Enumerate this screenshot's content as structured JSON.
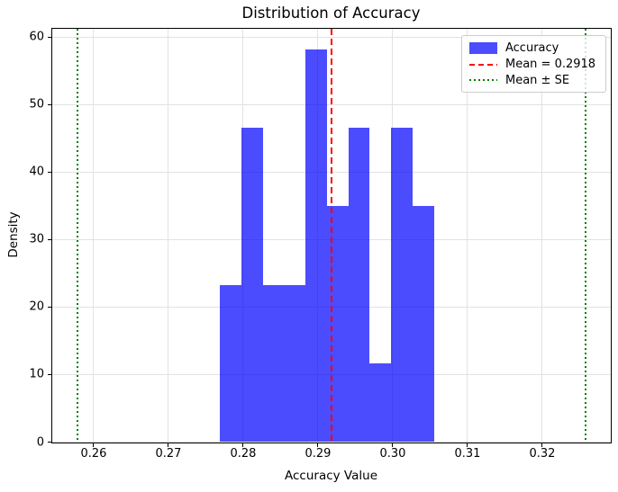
{
  "figure": {
    "title": "Distribution of Accuracy",
    "xlabel": "Accuracy Value",
    "ylabel": "Density"
  },
  "legend": {
    "position": "upper right",
    "items": [
      {
        "label": "Accuracy",
        "type": "patch",
        "color": "rgba(0,0,255,0.7)"
      },
      {
        "label": "Mean = 0.2918",
        "type": "dashed",
        "color": "#ff0000"
      },
      {
        "label": "Mean ± SE",
        "type": "dotted",
        "color": "#008000"
      }
    ]
  },
  "chart_data": {
    "type": "bar",
    "subtype": "histogram",
    "title": "Distribution of Accuracy",
    "xlabel": "Accuracy Value",
    "ylabel": "Density",
    "xlim": [
      0.2544,
      0.3291
    ],
    "ylim": [
      0,
      61.3
    ],
    "x_ticks": [
      0.26,
      0.27,
      0.28,
      0.29,
      0.3,
      0.31,
      0.32
    ],
    "x_tick_labels": [
      "0.26",
      "0.27",
      "0.28",
      "0.29",
      "0.30",
      "0.31",
      "0.32"
    ],
    "y_ticks": [
      0,
      10,
      20,
      30,
      40,
      50,
      60
    ],
    "y_tick_labels": [
      "0",
      "10",
      "20",
      "30",
      "40",
      "50",
      "60"
    ],
    "grid": true,
    "legend_position": "upper right",
    "series": [
      {
        "name": "Accuracy",
        "kind": "histogram",
        "bin_start": 0.2769,
        "bin_width": 0.00286,
        "bin_edges": [
          0.2769,
          0.27976,
          0.28262,
          0.28548,
          0.28834,
          0.2912,
          0.29406,
          0.29692,
          0.29978,
          0.30264,
          0.3055
        ],
        "densities": [
          23.28,
          46.56,
          23.28,
          23.28,
          58.2,
          34.92,
          46.56,
          11.64,
          46.56,
          34.92
        ],
        "color": "rgba(0,0,255,0.7)"
      }
    ],
    "reference_lines": [
      {
        "name": "mean",
        "value": 0.2918,
        "color": "#ff0000",
        "style": "dashed",
        "label": "Mean = 0.2918"
      },
      {
        "name": "mean-minus-se",
        "value": 0.2578,
        "color": "#008000",
        "style": "dotted",
        "label": "Mean ± SE"
      },
      {
        "name": "mean-plus-se",
        "value": 0.3258,
        "color": "#008000",
        "style": "dotted",
        "label": "Mean ± SE"
      }
    ]
  }
}
